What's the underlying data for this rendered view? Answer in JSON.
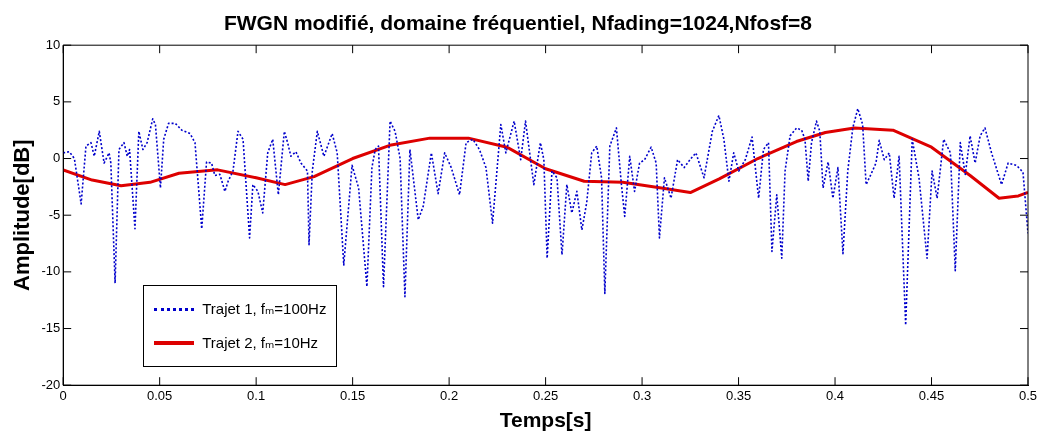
{
  "chart_data": {
    "type": "line",
    "title": "FWGN modifié, domaine fréquentiel, Nfading=1024,Nfosf=8",
    "xlabel": "Temps[s]",
    "ylabel": "Amplitude[dB]",
    "xlim": [
      0,
      0.5
    ],
    "xticks": [
      0,
      0.05,
      0.1,
      0.15,
      0.2,
      0.25,
      0.3,
      0.35,
      0.4,
      0.45,
      0.5
    ],
    "ylim": [
      -20,
      10
    ],
    "yticks": [
      -20,
      -15,
      -10,
      -5,
      0,
      5,
      10
    ],
    "grid": false,
    "legend": "bottom left",
    "marker": "none",
    "series": [
      {
        "name": "Trajet 1, fₘ=100Hz",
        "color": "#0000cc",
        "line_style": "dotted",
        "x": [
          0,
          0.0032,
          0.0058,
          0.0093,
          0.0118,
          0.0144,
          0.0161,
          0.0187,
          0.0212,
          0.0238,
          0.0247,
          0.0269,
          0.0289,
          0.0315,
          0.0332,
          0.0344,
          0.0372,
          0.0392,
          0.0413,
          0.0435,
          0.0464,
          0.0478,
          0.0504,
          0.0521,
          0.0546,
          0.0581,
          0.0615,
          0.0658,
          0.0683,
          0.0718,
          0.0743,
          0.0769,
          0.0786,
          0.0812,
          0.0838,
          0.0855,
          0.088,
          0.0906,
          0.0932,
          0.0966,
          0.0983,
          0.1009,
          0.1034,
          0.106,
          0.1086,
          0.1115,
          0.1146,
          0.1163,
          0.118,
          0.1206,
          0.1232,
          0.1266,
          0.1274,
          0.1291,
          0.1317,
          0.1351,
          0.1394,
          0.142,
          0.1454,
          0.1497,
          0.1531,
          0.1574,
          0.16,
          0.1617,
          0.1634,
          0.166,
          0.1694,
          0.172,
          0.1746,
          0.1771,
          0.1797,
          0.184,
          0.1866,
          0.1908,
          0.1943,
          0.1977,
          0.2011,
          0.2054,
          0.2088,
          0.2123,
          0.2157,
          0.2191,
          0.2225,
          0.2268,
          0.2294,
          0.2337,
          0.2371,
          0.2396,
          0.2439,
          0.2473,
          0.2491,
          0.2508,
          0.2533,
          0.2559,
          0.2585,
          0.261,
          0.2636,
          0.2662,
          0.2688,
          0.2713,
          0.2739,
          0.2765,
          0.279,
          0.2807,
          0.2833,
          0.2867,
          0.2893,
          0.291,
          0.2936,
          0.2961,
          0.2987,
          0.3013,
          0.3047,
          0.3073,
          0.309,
          0.3116,
          0.315,
          0.3184,
          0.3218,
          0.3253,
          0.3279,
          0.3321,
          0.3364,
          0.3398,
          0.3424,
          0.345,
          0.3475,
          0.3501,
          0.3535,
          0.357,
          0.3604,
          0.3629,
          0.3655,
          0.3673,
          0.3698,
          0.3724,
          0.3741,
          0.3767,
          0.3801,
          0.3827,
          0.3844,
          0.3861,
          0.3878,
          0.3904,
          0.3921,
          0.3938,
          0.3964,
          0.3989,
          0.4015,
          0.4041,
          0.4066,
          0.4092,
          0.4118,
          0.4143,
          0.4161,
          0.4186,
          0.4212,
          0.4229,
          0.4255,
          0.4281,
          0.4306,
          0.4332,
          0.4366,
          0.44,
          0.4435,
          0.4477,
          0.4503,
          0.4529,
          0.4563,
          0.4598,
          0.4623,
          0.4649,
          0.4675,
          0.47,
          0.4726,
          0.4752,
          0.4777,
          0.4811,
          0.4863,
          0.4897,
          0.494,
          0.4974,
          0.5
        ],
        "values": [
          0.5,
          0.6,
          0,
          -4,
          1.1,
          1.4,
          0.2,
          2.4,
          -0.4,
          0.5,
          -0.4,
          -11,
          0.8,
          1.4,
          0.2,
          0.8,
          -6.2,
          2.4,
          0.8,
          1.4,
          3.5,
          3,
          -2.6,
          1.7,
          3.1,
          3.1,
          2.5,
          2.2,
          1.4,
          -6.2,
          -0.3,
          -0.4,
          -1.5,
          -1.4,
          -2.9,
          -2,
          -1.1,
          2.4,
          1.7,
          -7,
          -2.3,
          -2.9,
          -4.8,
          0.5,
          1.7,
          -3.2,
          2.4,
          1.4,
          0.2,
          0.6,
          -0.4,
          -1.1,
          -7.6,
          -1.1,
          2.4,
          0.2,
          2.2,
          0.5,
          -9.4,
          -0.6,
          -2.6,
          -11.3,
          -0.8,
          0.8,
          1.1,
          -11.3,
          3.3,
          2.4,
          0,
          -12.2,
          0.8,
          -5.4,
          -4.2,
          0.5,
          -3.1,
          0.5,
          -0.8,
          -3.2,
          1.4,
          1.7,
          0.8,
          -0.8,
          -5.7,
          3,
          0.5,
          3.3,
          -0.1,
          3.3,
          -2.3,
          1.4,
          -0.1,
          -8.8,
          -1.1,
          -1.7,
          -8.5,
          -2.3,
          -4.8,
          -2.9,
          -6.3,
          -3.9,
          0.5,
          1.1,
          -1.7,
          -11.9,
          1.1,
          2.7,
          -2.3,
          -5.1,
          0.2,
          -2.9,
          -0.4,
          -0.1,
          1,
          -0.4,
          -7,
          -1.7,
          -3.5,
          -0.1,
          -0.8,
          0,
          0.5,
          -1.7,
          2.4,
          3.8,
          1.7,
          -2,
          0.5,
          -1.1,
          -0.1,
          1.9,
          -3.5,
          0.8,
          1.4,
          -8.2,
          -3.2,
          -8.8,
          -1.1,
          2,
          2.7,
          2.5,
          1.7,
          -2,
          1.4,
          3.3,
          2.4,
          -2.6,
          -0.3,
          -3.5,
          -0.8,
          -8.4,
          -1.1,
          2.7,
          4.4,
          3,
          -2.3,
          -1.4,
          -0.4,
          1.6,
          -0.1,
          0.5,
          -3.5,
          0.2,
          -14.7,
          1.7,
          -1.7,
          -8.8,
          -1.1,
          -3.5,
          1.7,
          0.5,
          -9.9,
          1.4,
          -1.4,
          2,
          -0.4,
          2,
          2.7,
          0.5,
          -2.3,
          -0.4,
          -0.6,
          -1.2,
          -6.6
        ]
      },
      {
        "name": "Trajet 2, fₘ=10Hz",
        "color": "#dd0000",
        "line_style": "solid",
        "x": [
          0,
          0.015,
          0.03,
          0.045,
          0.06,
          0.08,
          0.1,
          0.115,
          0.13,
          0.15,
          0.17,
          0.19,
          0.21,
          0.23,
          0.25,
          0.27,
          0.29,
          0.31,
          0.325,
          0.34,
          0.36,
          0.38,
          0.395,
          0.41,
          0.43,
          0.45,
          0.47,
          0.485,
          0.495,
          0.5
        ],
        "values": [
          -1,
          -1.9,
          -2.4,
          -2.1,
          -1.3,
          -1,
          -1.7,
          -2.3,
          -1.6,
          0,
          1.2,
          1.8,
          1.8,
          1,
          -0.9,
          -2,
          -2.1,
          -2.6,
          -3,
          -1.8,
          0,
          1.5,
          2.3,
          2.7,
          2.5,
          1,
          -1.5,
          -3.5,
          -3.3,
          -3
        ]
      }
    ]
  }
}
